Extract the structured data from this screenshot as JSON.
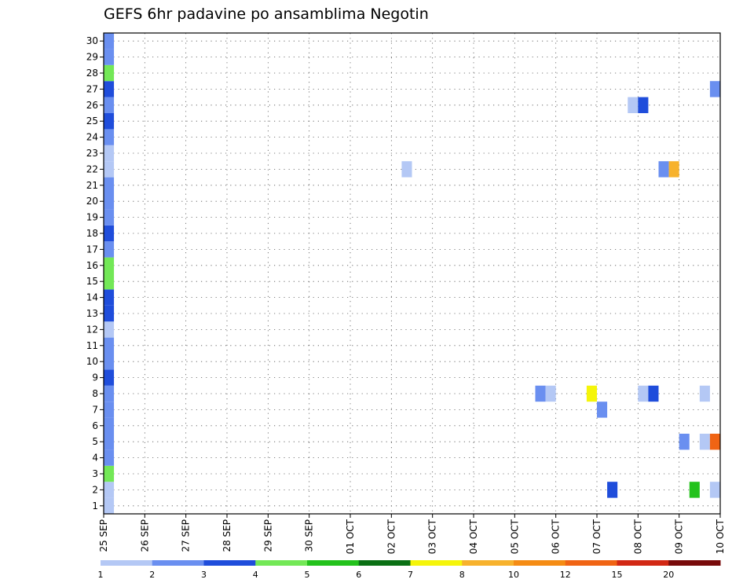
{
  "chart_data": {
    "type": "heatmap",
    "title": "GEFS 6hr padavine po ansamblima Negotin",
    "xlabel": "",
    "ylabel": "",
    "x_ticks": [
      "25 SEP",
      "26 SEP",
      "27 SEP",
      "28 SEP",
      "29 SEP",
      "30 SEP",
      "01 OCT",
      "02 OCT",
      "03 OCT",
      "04 OCT",
      "05 OCT",
      "06 OCT",
      "07 OCT",
      "08 OCT",
      "09 OCT",
      "10 OCT"
    ],
    "y_ticks": [
      "1",
      "2",
      "3",
      "4",
      "5",
      "6",
      "7",
      "8",
      "9",
      "10",
      "11",
      "12",
      "13",
      "14",
      "15",
      "16",
      "17",
      "18",
      "19",
      "20",
      "21",
      "22",
      "23",
      "24",
      "25",
      "26",
      "27",
      "28",
      "29",
      "30"
    ],
    "xlim": [
      0,
      15
    ],
    "ylim": [
      0.5,
      30.5
    ],
    "x_step": 0.25,
    "grid": true,
    "colorbar": {
      "labels": [
        "1",
        "2",
        "3",
        "4",
        "5",
        "6",
        "7",
        "8",
        "10",
        "12",
        "15",
        "20"
      ],
      "colors": [
        "#b4c8f5",
        "#6a8ff0",
        "#1f4ddb",
        "#73e857",
        "#23c21c",
        "#0a7014",
        "#f5f50a",
        "#f7b22d",
        "#f58c14",
        "#f06414",
        "#d22814",
        "#780a0a"
      ]
    },
    "cells": [
      {
        "x": 0.0,
        "y": 1,
        "v": 1
      },
      {
        "x": 0.0,
        "y": 2,
        "v": 1
      },
      {
        "x": 0.0,
        "y": 3,
        "v": 4
      },
      {
        "x": 0.0,
        "y": 4,
        "v": 2
      },
      {
        "x": 0.0,
        "y": 5,
        "v": 2
      },
      {
        "x": 0.0,
        "y": 6,
        "v": 2
      },
      {
        "x": 0.0,
        "y": 7,
        "v": 2
      },
      {
        "x": 0.0,
        "y": 8,
        "v": 2
      },
      {
        "x": 0.0,
        "y": 9,
        "v": 3
      },
      {
        "x": 0.0,
        "y": 10,
        "v": 2
      },
      {
        "x": 0.0,
        "y": 11,
        "v": 2
      },
      {
        "x": 0.0,
        "y": 12,
        "v": 1
      },
      {
        "x": 0.0,
        "y": 13,
        "v": 3
      },
      {
        "x": 0.0,
        "y": 14,
        "v": 3
      },
      {
        "x": 0.0,
        "y": 15,
        "v": 4
      },
      {
        "x": 0.0,
        "y": 16,
        "v": 4
      },
      {
        "x": 0.0,
        "y": 17,
        "v": 2
      },
      {
        "x": 0.0,
        "y": 18,
        "v": 3
      },
      {
        "x": 0.0,
        "y": 19,
        "v": 2
      },
      {
        "x": 0.0,
        "y": 20,
        "v": 2
      },
      {
        "x": 0.0,
        "y": 21,
        "v": 2
      },
      {
        "x": 0.0,
        "y": 22,
        "v": 1
      },
      {
        "x": 0.0,
        "y": 23,
        "v": 1
      },
      {
        "x": 0.0,
        "y": 24,
        "v": 2
      },
      {
        "x": 0.0,
        "y": 25,
        "v": 3
      },
      {
        "x": 0.0,
        "y": 26,
        "v": 2
      },
      {
        "x": 0.0,
        "y": 27,
        "v": 3
      },
      {
        "x": 0.0,
        "y": 28,
        "v": 4
      },
      {
        "x": 0.0,
        "y": 29,
        "v": 2
      },
      {
        "x": 0.0,
        "y": 30,
        "v": 2
      },
      {
        "x": 7.25,
        "y": 22,
        "v": 1
      },
      {
        "x": 10.5,
        "y": 8,
        "v": 2
      },
      {
        "x": 10.75,
        "y": 8,
        "v": 1
      },
      {
        "x": 11.75,
        "y": 8,
        "v": 7
      },
      {
        "x": 12.0,
        "y": 7,
        "v": 2
      },
      {
        "x": 12.25,
        "y": 2,
        "v": 3
      },
      {
        "x": 12.75,
        "y": 26,
        "v": 1
      },
      {
        "x": 13.0,
        "y": 26,
        "v": 3
      },
      {
        "x": 13.0,
        "y": 8,
        "v": 1
      },
      {
        "x": 13.25,
        "y": 8,
        "v": 3
      },
      {
        "x": 13.5,
        "y": 22,
        "v": 2
      },
      {
        "x": 13.75,
        "y": 22,
        "v": 8
      },
      {
        "x": 14.0,
        "y": 5,
        "v": 2
      },
      {
        "x": 14.25,
        "y": 2,
        "v": 5
      },
      {
        "x": 14.5,
        "y": 8,
        "v": 1
      },
      {
        "x": 14.5,
        "y": 5,
        "v": 1
      },
      {
        "x": 14.75,
        "y": 5,
        "v": 10
      },
      {
        "x": 14.75,
        "y": 27,
        "v": 2
      },
      {
        "x": 14.75,
        "y": 2,
        "v": 1
      }
    ]
  }
}
